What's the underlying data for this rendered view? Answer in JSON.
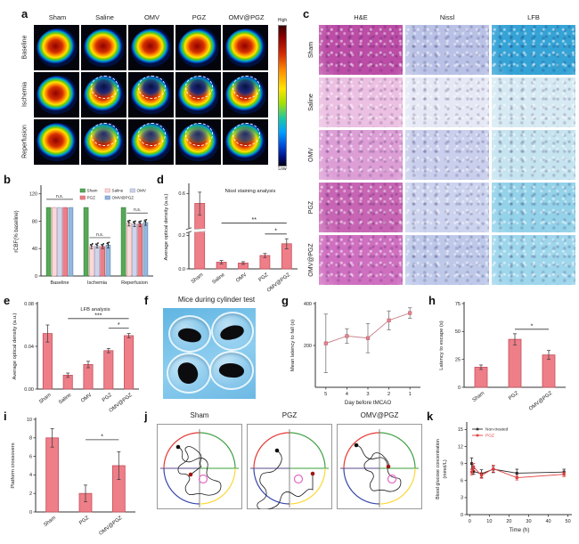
{
  "figure": {
    "panels": {
      "a": {
        "label": "a",
        "columns": [
          "Sham",
          "Saline",
          "OMV",
          "PGZ",
          "OMV@PGZ"
        ],
        "rows": [
          "Baseline",
          "Ischemia",
          "Reperfusion"
        ],
        "colorbar": {
          "high": "High",
          "low": "Low"
        }
      },
      "b": {
        "label": "b"
      },
      "c": {
        "label": "c",
        "columns": [
          "H&E",
          "Nissl",
          "LFB"
        ],
        "rows": [
          "Sham",
          "Saline",
          "OMV",
          "PGZ",
          "OMV@PGZ"
        ]
      },
      "d": {
        "label": "d"
      },
      "e": {
        "label": "e"
      },
      "f": {
        "label": "f",
        "title": "Mice during cylinder test"
      },
      "g": {
        "label": "g"
      },
      "h": {
        "label": "h"
      },
      "i": {
        "label": "i"
      },
      "j": {
        "label": "j",
        "boxes": [
          "Sham",
          "PGZ",
          "OMV@PGZ"
        ]
      },
      "k": {
        "label": "k"
      }
    }
  },
  "colors": {
    "bar_fill": "#ee7e88",
    "bar_stroke": "#c4505c",
    "maze_quadrants": [
      "#e53935",
      "#43a047",
      "#3949ab",
      "#fdd835"
    ],
    "histology_matrix": [
      [
        "#bb4da6",
        "#b9c2e6",
        "#35a3d6"
      ],
      [
        "#ecc0e2",
        "#e6e9f5",
        "#d6eaf3"
      ],
      [
        "#dd9ed6",
        "#c9cfec",
        "#c5e4f0"
      ],
      [
        "#c765b4",
        "#ccd3ee",
        "#93d2e9"
      ],
      [
        "#cf6fc0",
        "#bec9ea",
        "#9ed6ec"
      ]
    ]
  },
  "chart_data": [
    {
      "id": "chart-b",
      "type": "grouped-bar",
      "ylabel": "rCBF(% baseline)",
      "ylim": [
        0,
        130
      ],
      "yticks": [
        0,
        40,
        80,
        120
      ],
      "categories": [
        "Baseline",
        "Ischemia",
        "Reperfusion"
      ],
      "series": [
        {
          "name": "Sham",
          "color": "#57a857",
          "stroke": "#2e7d32",
          "values": [
            100,
            100,
            100
          ]
        },
        {
          "name": "Saline",
          "color": "#f7d9da",
          "stroke": "#d98a90",
          "values": [
            100,
            43,
            77
          ]
        },
        {
          "name": "OMV",
          "color": "#ced5ea",
          "stroke": "#8f9bc0",
          "values": [
            100,
            44,
            76
          ]
        },
        {
          "name": "PGZ",
          "color": "#ec7e88",
          "stroke": "#c4505c",
          "values": [
            100,
            43,
            76
          ]
        },
        {
          "name": "OMV@PGZ",
          "color": "#93b8dc",
          "stroke": "#5a82ae",
          "values": [
            100,
            45,
            78
          ]
        }
      ],
      "errors": [
        [
          0,
          0,
          0
        ],
        [
          0,
          3,
          4
        ],
        [
          0,
          3,
          4
        ],
        [
          0,
          3,
          4
        ],
        [
          0,
          4,
          4
        ]
      ],
      "annotations": [
        {
          "text": "n.s.",
          "group": 0,
          "from": 0,
          "to": 4,
          "at": 112
        },
        {
          "text": "n.s.",
          "group": 1,
          "from": 1,
          "to": 4,
          "at": 56
        },
        {
          "text": "n.s.",
          "group": 2,
          "from": 1,
          "to": 4,
          "at": 92
        }
      ]
    },
    {
      "id": "chart-d",
      "type": "bar",
      "title": "Nissl staining analysis",
      "ylabel": "Average optical density (a.u.)",
      "yticks": [
        0,
        0.2,
        0.6
      ],
      "ytick_labels": [
        "0.0",
        "0.2",
        "0.6"
      ],
      "scale_pts": [
        [
          0,
          0
        ],
        [
          0.2,
          0.4
        ],
        [
          0.26,
          0.5
        ],
        [
          0.6,
          0.9
        ],
        [
          0.72,
          1.0
        ]
      ],
      "axis_break": 0.46,
      "categories": [
        "Sham",
        "Saline",
        "OMV",
        "PGZ",
        "OMV@PGZ"
      ],
      "values": [
        0.5,
        0.04,
        0.035,
        0.08,
        0.15
      ],
      "errors": [
        0.12,
        0.01,
        0.008,
        0.012,
        0.03
      ],
      "sig": [
        {
          "from": 1,
          "to": 4,
          "label": "**",
          "at": 0.3
        },
        {
          "from": 3,
          "to": 4,
          "label": "*",
          "at": 0.21
        }
      ]
    },
    {
      "id": "chart-e",
      "type": "bar",
      "title": "LFB analysis",
      "ylabel": "Average optical density (a.u.)",
      "ylim": [
        0,
        0.08
      ],
      "yticks": [
        0,
        0.04,
        0.08
      ],
      "ytick_labels": [
        "0.00",
        "0.04",
        "0.08"
      ],
      "categories": [
        "Sham",
        "Saline",
        "OMV",
        "PGZ",
        "OMV@PGZ"
      ],
      "values": [
        0.052,
        0.013,
        0.023,
        0.036,
        0.05
      ],
      "errors": [
        0.008,
        0.002,
        0.003,
        0.002,
        0.002
      ],
      "sig": [
        {
          "from": 1,
          "to": 4,
          "label": "***",
          "at": 0.066
        },
        {
          "from": 3,
          "to": 4,
          "label": "*",
          "at": 0.057
        }
      ]
    },
    {
      "id": "chart-g",
      "type": "line-cat",
      "ylabel": "Mean latency to fall (s)",
      "xlabel": "Day before tMCAO",
      "categories": [
        "5",
        "4",
        "3",
        "2",
        "1"
      ],
      "ylim": [
        0,
        400
      ],
      "yticks": [
        200,
        400
      ],
      "values": [
        210,
        245,
        235,
        320,
        355
      ],
      "errors": [
        140,
        35,
        70,
        45,
        25
      ],
      "color": "#e8838d"
    },
    {
      "id": "chart-h",
      "type": "bar",
      "ylabel": "Latency to escape (s)",
      "ylim": [
        0,
        75
      ],
      "yticks": [
        0,
        25,
        50,
        75
      ],
      "categories": [
        "Sham",
        "PGZ",
        "OMV@PGZ"
      ],
      "values": [
        18,
        43,
        29
      ],
      "errors": [
        2,
        5,
        4
      ],
      "sig": [
        {
          "from": 1,
          "to": 2,
          "label": "*",
          "at": 52
        }
      ]
    },
    {
      "id": "chart-i",
      "type": "bar",
      "ylabel": "Platform crossovers",
      "ylim": [
        0,
        10
      ],
      "yticks": [
        0,
        2,
        4,
        6,
        8,
        10
      ],
      "categories": [
        "Sham",
        "PGZ",
        "OMV@PGZ"
      ],
      "values": [
        8,
        2,
        5
      ],
      "errors": [
        1,
        0.9,
        1.5
      ],
      "sig": [
        {
          "from": 1,
          "to": 2,
          "label": "*",
          "at": 7.8
        }
      ]
    },
    {
      "id": "chart-k",
      "type": "line-num",
      "ylabel_lines": [
        "Blood glucose concentration",
        "(mmol/L)"
      ],
      "xlabel": "Time (h)",
      "x": [
        1,
        2,
        6,
        12,
        24,
        48
      ],
      "xticks": [
        0,
        10,
        20,
        30,
        40,
        50
      ],
      "xlim": [
        -1.5,
        52
      ],
      "ylim": [
        0,
        16
      ],
      "yticks": [
        0,
        3,
        6,
        9,
        12,
        15
      ],
      "series": [
        {
          "name": "Non-treated",
          "color": "#2b2b2b",
          "values": [
            9.0,
            7.6,
            7.2,
            8.0,
            7.3,
            7.5
          ],
          "errors": [
            1.0,
            0.5,
            0.7,
            0.6,
            0.7,
            0.5
          ]
        },
        {
          "name": "PGZ",
          "color": "#e23d3d",
          "values": [
            7.5,
            8.4,
            6.9,
            8.1,
            6.5,
            7.1
          ],
          "errors": [
            0.5,
            0.6,
            0.5,
            0.6,
            0.4,
            0.4
          ]
        }
      ]
    }
  ]
}
